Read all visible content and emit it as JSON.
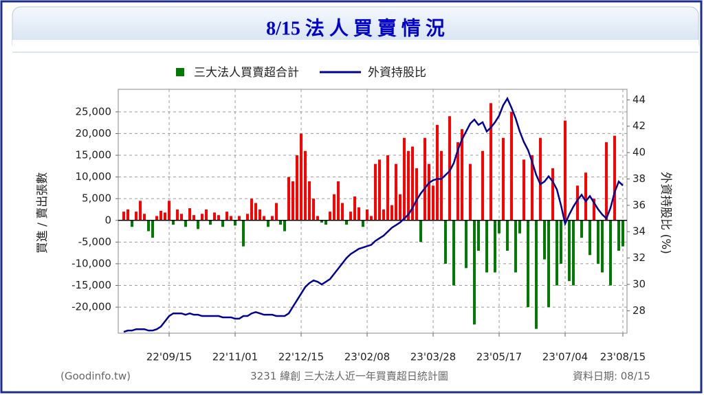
{
  "chart_data": {
    "type": "bar",
    "title": "8/15 法 人 買 賣 情 況",
    "y_label": "買進 / 賣出張數",
    "y2_label": "外資持股比 (%)",
    "source": "(Goodinfo.tw)",
    "caption": "3231 緯創 三大法人近一年買賣超日統計圖",
    "date_note": "資料日期: 08/15",
    "categories": [
      null,
      null,
      null,
      null,
      null,
      null,
      null,
      null,
      null,
      null,
      null,
      "22'09/15",
      null,
      null,
      null,
      null,
      null,
      null,
      null,
      null,
      null,
      null,
      null,
      null,
      null,
      null,
      null,
      "22'11/01",
      null,
      null,
      null,
      null,
      null,
      null,
      null,
      null,
      null,
      null,
      null,
      null,
      null,
      null,
      null,
      "22'12/15",
      null,
      null,
      null,
      null,
      null,
      null,
      null,
      null,
      null,
      null,
      null,
      null,
      null,
      null,
      null,
      "23'02/08",
      null,
      null,
      null,
      null,
      null,
      null,
      null,
      null,
      null,
      null,
      null,
      null,
      null,
      null,
      null,
      "23'03/28",
      null,
      null,
      null,
      null,
      null,
      null,
      null,
      null,
      null,
      null,
      null,
      null,
      null,
      null,
      null,
      "23'05/17",
      null,
      null,
      null,
      null,
      null,
      null,
      null,
      null,
      null,
      null,
      null,
      null,
      null,
      null,
      null,
      "23'07/04",
      null,
      null,
      null,
      null,
      null,
      null,
      null,
      null,
      null,
      null,
      null,
      null,
      null,
      "23'08/15"
    ],
    "series": [
      {
        "name": "三大法人買賣超合計",
        "type": "bar",
        "color": "#007a00",
        "positive_color": "#ff0000",
        "values": [
          2000,
          2500,
          -1500,
          2000,
          4500,
          1500,
          -2500,
          -4000,
          1000,
          2200,
          1800,
          4500,
          -1000,
          2500,
          1500,
          -1500,
          2800,
          1200,
          -2000,
          1500,
          2500,
          -1000,
          1800,
          1200,
          -1500,
          2000,
          1000,
          -1200,
          1000,
          -6000,
          1500,
          5000,
          4000,
          2500,
          1000,
          -1500,
          1000,
          4000,
          -1000,
          -2500,
          10000,
          9000,
          15000,
          20000,
          16000,
          9000,
          5000,
          1000,
          -500,
          -1000,
          2000,
          6000,
          9000,
          4000,
          -1000,
          2000,
          5500,
          3000,
          -1500,
          2500,
          1000,
          13000,
          14000,
          2500,
          15000,
          3500,
          13000,
          6000,
          19000,
          16000,
          17000,
          12000,
          -5000,
          19000,
          13000,
          8000,
          22000,
          16000,
          -10000,
          24000,
          -15000,
          18000,
          21000,
          -11000,
          13000,
          -24000,
          -7000,
          16000,
          -12000,
          27000,
          -12000,
          -3000,
          19000,
          -7000,
          25000,
          -12000,
          -3000,
          14000,
          -20000,
          15000,
          -25000,
          19000,
          -9000,
          -20000,
          12000,
          -15000,
          -10000,
          23000,
          -14000,
          -15000,
          8000,
          -4000,
          11000,
          -8000,
          5000,
          -10000,
          -12000,
          18000,
          -15000,
          19500,
          -7000,
          -6000
        ]
      },
      {
        "name": "外資持股比",
        "type": "line",
        "axis": "y2",
        "color": "#000099",
        "values": [
          26.4,
          26.5,
          26.5,
          26.6,
          26.6,
          26.6,
          26.5,
          26.5,
          26.6,
          26.8,
          27.2,
          27.6,
          27.8,
          27.8,
          27.8,
          27.7,
          27.8,
          27.7,
          27.7,
          27.6,
          27.6,
          27.6,
          27.6,
          27.6,
          27.5,
          27.5,
          27.5,
          27.4,
          27.4,
          27.6,
          27.6,
          27.8,
          27.9,
          27.8,
          27.7,
          27.7,
          27.7,
          27.6,
          27.6,
          27.6,
          27.8,
          28.3,
          28.8,
          29.3,
          29.8,
          30.1,
          30.3,
          30.2,
          30.0,
          30.2,
          30.4,
          30.8,
          31.2,
          31.6,
          32.0,
          32.3,
          32.5,
          32.7,
          32.8,
          32.9,
          33.0,
          33.3,
          33.5,
          33.7,
          34.0,
          34.3,
          34.5,
          34.7,
          35.0,
          35.3,
          35.8,
          36.4,
          36.9,
          37.3,
          37.7,
          37.9,
          38.0,
          38.0,
          38.3,
          38.6,
          39.2,
          40.2,
          41.0,
          41.6,
          42.2,
          42.5,
          42.1,
          42.3,
          41.6,
          41.9,
          42.3,
          42.8,
          43.6,
          44.1,
          43.4,
          42.6,
          41.6,
          40.8,
          40.2,
          39.3,
          38.3,
          37.6,
          37.8,
          38.2,
          37.8,
          37.2,
          36.0,
          34.6,
          35.3,
          35.9,
          36.4,
          36.8,
          36.3,
          36.7,
          36.2,
          35.7,
          35.3,
          35.0,
          35.8,
          37.0,
          37.8,
          37.5
        ]
      }
    ],
    "ylim": [
      -26000,
      30200
    ],
    "yticks": [
      {
        "value": -20000,
        "label": "-20,000"
      },
      {
        "value": -15000,
        "label": "-15,000"
      },
      {
        "value": -10000,
        "label": "-10,000"
      },
      {
        "value": -5000,
        "label": "-5,000"
      },
      0,
      {
        "value": 5000,
        "label": "5,000"
      },
      {
        "value": 10000,
        "label": "10,000"
      },
      {
        "value": 15000,
        "label": "15,000"
      },
      {
        "value": 20000,
        "label": "20,000"
      },
      {
        "value": 25000,
        "label": "25,000"
      }
    ],
    "y2lim": [
      26.3,
      44.8
    ],
    "y2ticks": [
      28,
      30,
      32,
      34,
      36,
      38,
      40,
      42,
      44
    ],
    "grid": true
  }
}
